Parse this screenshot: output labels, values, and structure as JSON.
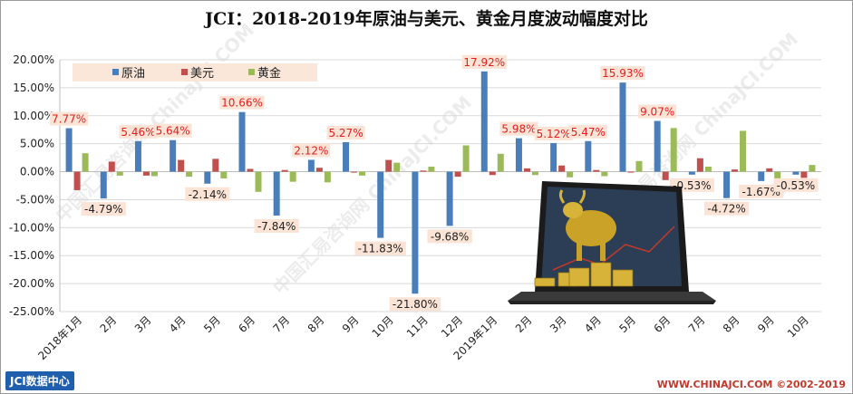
{
  "title": "JCI：2018-2019年原油与美元、黄金月度波动幅度对比",
  "brand": "JCI数据中心",
  "site": "WWW.CHINAJCI.COM ©2002-2019",
  "watermark": "中国汇易咨询网 ChinaJCI.COM",
  "chart_data": {
    "type": "bar",
    "categories": [
      "2018年1月",
      "2月",
      "3月",
      "4月",
      "5月",
      "6月",
      "7月",
      "8月",
      "9月",
      "10月",
      "11月",
      "12月",
      "2019年1月",
      "2月",
      "3月",
      "4月",
      "5月",
      "6月",
      "7月",
      "8月",
      "9月",
      "10月"
    ],
    "series": [
      {
        "name": "原油",
        "color": "#4a7ebb",
        "values": [
          7.77,
          -4.79,
          5.46,
          5.64,
          -2.14,
          10.66,
          -7.84,
          2.12,
          5.27,
          -11.83,
          -21.8,
          -9.68,
          17.92,
          5.98,
          5.12,
          5.47,
          15.93,
          9.07,
          -0.53,
          -4.72,
          -1.67,
          -0.53
        ]
      },
      {
        "name": "美元",
        "color": "#c0504d",
        "values": [
          -3.3,
          1.8,
          -0.7,
          2.1,
          2.3,
          0.5,
          0.3,
          0.7,
          -0.1,
          2.1,
          0.2,
          -0.9,
          -0.6,
          0.6,
          1.1,
          0.3,
          -0.1,
          -1.5,
          2.4,
          0.4,
          0.6,
          -1.1
        ]
      },
      {
        "name": "黄金",
        "color": "#9bbb59",
        "values": [
          3.3,
          -0.7,
          -0.8,
          -0.9,
          -1.2,
          -3.6,
          -1.8,
          -1.9,
          -0.7,
          1.6,
          0.9,
          4.7,
          3.2,
          -0.6,
          -1.0,
          -0.8,
          1.9,
          7.8,
          0.9,
          7.3,
          -2.3,
          1.2
        ]
      }
    ],
    "data_labels": [
      "7.77%",
      "-4.79%",
      "5.46%",
      "5.64%",
      "-2.14%",
      "10.66%",
      "-7.84%",
      "2.12%",
      "5.27%",
      "-11.83%",
      "-21.80%",
      "-9.68%",
      "17.92%",
      "5.98%",
      "5.12%",
      "5.47%",
      "15.93%",
      "9.07%",
      "-0.53%",
      "-4.72%",
      "-1.67%",
      "-0.53%"
    ],
    "y_ticks": [
      "-25.00%",
      "-20.00%",
      "-15.00%",
      "-10.00%",
      "-5.00%",
      "0.00%",
      "5.00%",
      "10.00%",
      "15.00%",
      "20.00%"
    ],
    "ylim": [
      -25,
      20
    ],
    "legend_position": "top-left",
    "grid": true
  }
}
